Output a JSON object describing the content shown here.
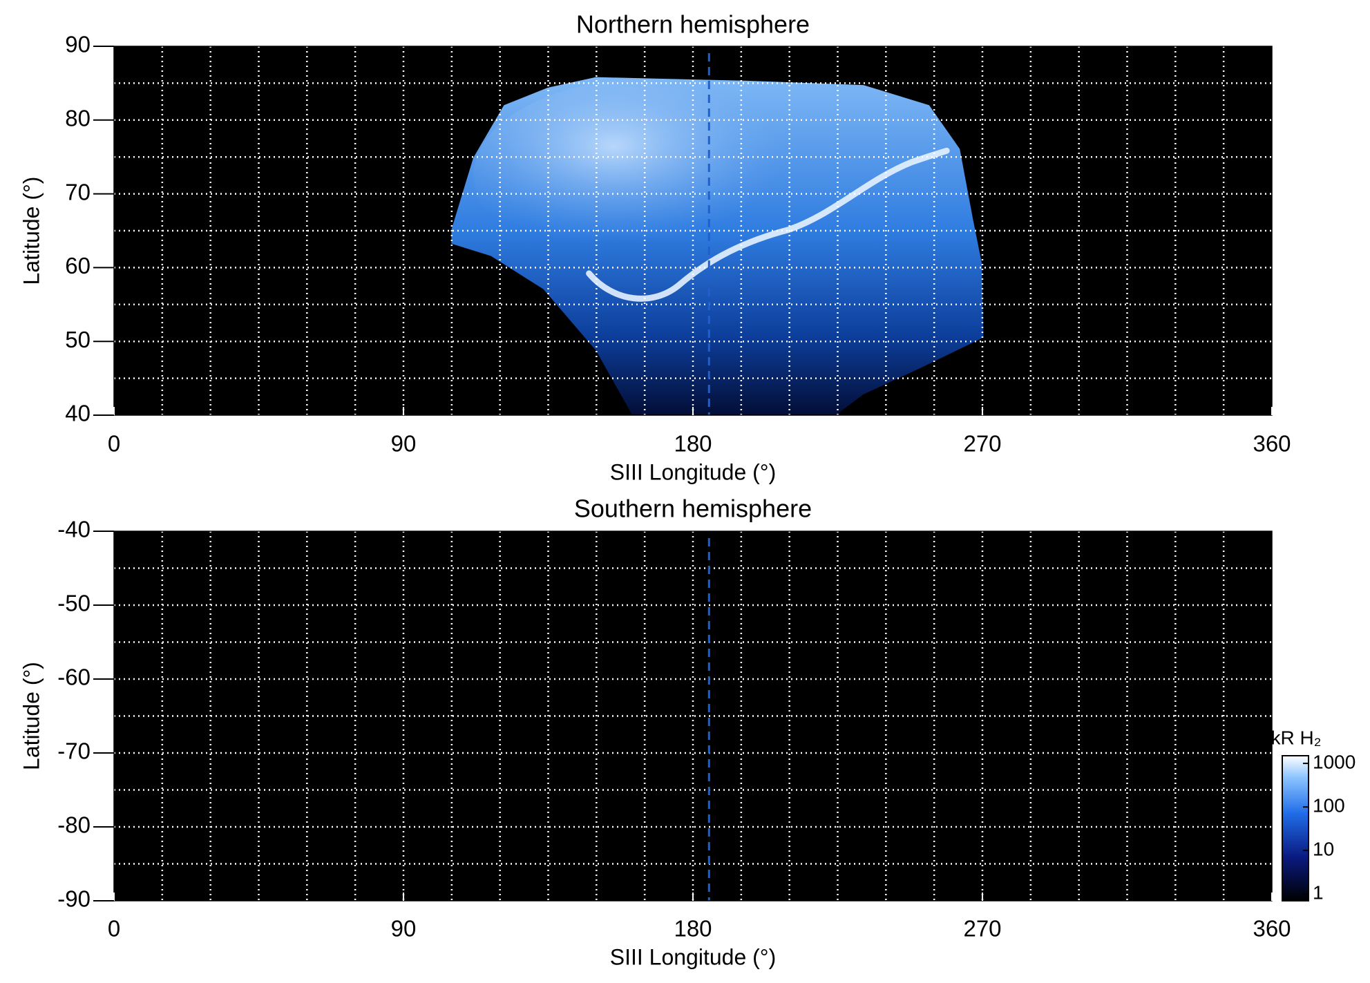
{
  "chart_data": [
    {
      "type": "image",
      "title": "Northern hemisphere",
      "xlabel": "SIII Longitude (°)",
      "ylabel": "Latitude (°)",
      "xlim": [
        0,
        360
      ],
      "ylim": [
        40,
        90
      ],
      "xticks": [
        0,
        90,
        180,
        270,
        360
      ],
      "yticks": [
        40,
        50,
        60,
        70,
        80,
        90
      ],
      "xgrid": [
        15,
        30,
        45,
        60,
        75,
        90,
        105,
        120,
        135,
        150,
        165,
        180,
        195,
        210,
        225,
        240,
        255,
        270,
        285,
        300,
        315,
        330,
        345
      ],
      "ygrid": [
        45,
        50,
        55,
        60,
        65,
        70,
        75,
        80,
        85
      ],
      "grid_color": "#ffffff",
      "background": "#000000",
      "reference_x": 185,
      "reference_color": "#1f5fd0"
    },
    {
      "type": "image",
      "title": "Southern hemisphere",
      "xlabel": "SIII Longitude (°)",
      "ylabel": "Latitude (°)",
      "xlim": [
        0,
        360
      ],
      "ylim": [
        -90,
        -40
      ],
      "xticks": [
        0,
        90,
        180,
        270,
        360
      ],
      "yticks": [
        -90,
        -80,
        -70,
        -60,
        -50,
        -40
      ],
      "xgrid": [
        15,
        30,
        45,
        60,
        75,
        90,
        105,
        120,
        135,
        150,
        165,
        180,
        195,
        210,
        225,
        240,
        255,
        270,
        285,
        300,
        315,
        330,
        345
      ],
      "ygrid": [
        -85,
        -80,
        -75,
        -70,
        -65,
        -60,
        -55,
        -50,
        -45
      ],
      "grid_color": "#ffffff",
      "background": "#000000",
      "reference_x": 185,
      "reference_color": "#1f5fd0",
      "colorbar": {
        "title": "kR H₂",
        "log": true,
        "lim": [
          0.7,
          1500
        ],
        "ticks": [
          1,
          10,
          100,
          1000
        ]
      }
    }
  ]
}
